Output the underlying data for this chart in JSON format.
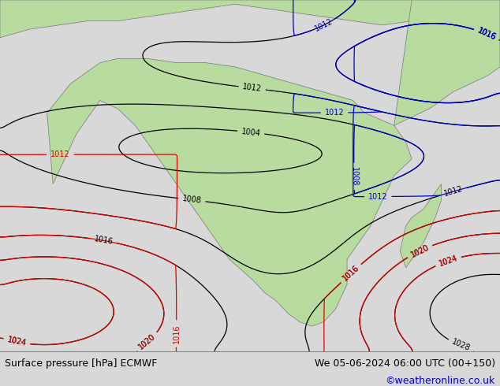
{
  "title_left": "Surface pressure [hPa] ECMWF",
  "title_right": "We 05-06-2024 06:00 UTC (00+150)",
  "copyright": "©weatheronline.co.uk",
  "bg_color": "#d8d8d8",
  "land_color": "#b8dba0",
  "fig_width": 6.34,
  "fig_height": 4.9,
  "dpi": 100,
  "map_bg": "#d8d8d8",
  "contour_color_black": "#000000",
  "contour_color_red": "#dd0000",
  "contour_color_blue": "#0000cc",
  "title_fontsize": 9,
  "label_fontsize": 7
}
